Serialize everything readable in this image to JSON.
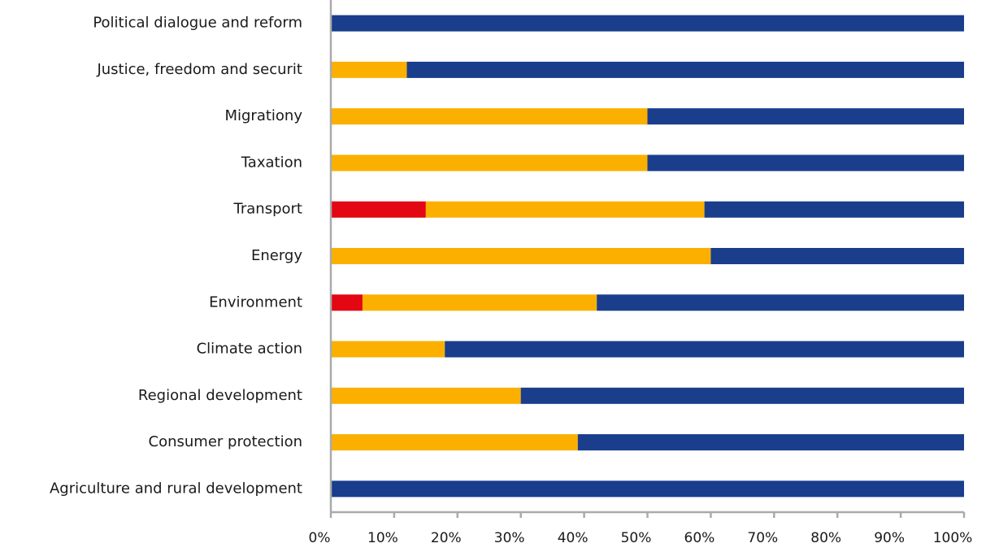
{
  "chart_data": {
    "type": "stacked-barh",
    "categories": [
      "Political dialogue and reform",
      "Justice, freedom and securit",
      "Migrationy",
      "Taxation",
      "Transport",
      "Energy",
      "Environment",
      "Climate action",
      "Regional development",
      "Consumer protection",
      "Agriculture and rural development"
    ],
    "series": [
      {
        "color": "#e30613",
        "values": [
          0,
          0,
          0,
          0,
          15,
          0,
          5,
          0,
          0,
          0,
          0
        ]
      },
      {
        "color": "#fbb000",
        "values": [
          0,
          12,
          50,
          50,
          44,
          60,
          37,
          18,
          30,
          39,
          0
        ]
      },
      {
        "color": "#1a3e8c",
        "values": [
          100,
          88,
          50,
          50,
          41,
          40,
          58,
          82,
          70,
          61,
          100
        ]
      }
    ],
    "xlim": [
      0,
      100
    ],
    "xticks": [
      {
        "value": 0,
        "label": "0%"
      },
      {
        "value": 10,
        "label": "10%"
      },
      {
        "value": 20,
        "label": "20%"
      },
      {
        "value": 30,
        "label": "30%"
      },
      {
        "value": 40,
        "label": "40%"
      },
      {
        "value": 50,
        "label": "50%"
      },
      {
        "value": 60,
        "label": "60%"
      },
      {
        "value": 70,
        "label": "70%"
      },
      {
        "value": 80,
        "label": "80%"
      },
      {
        "value": 90,
        "label": "90%"
      },
      {
        "value": 100,
        "label": "100%"
      }
    ],
    "grid": false
  }
}
